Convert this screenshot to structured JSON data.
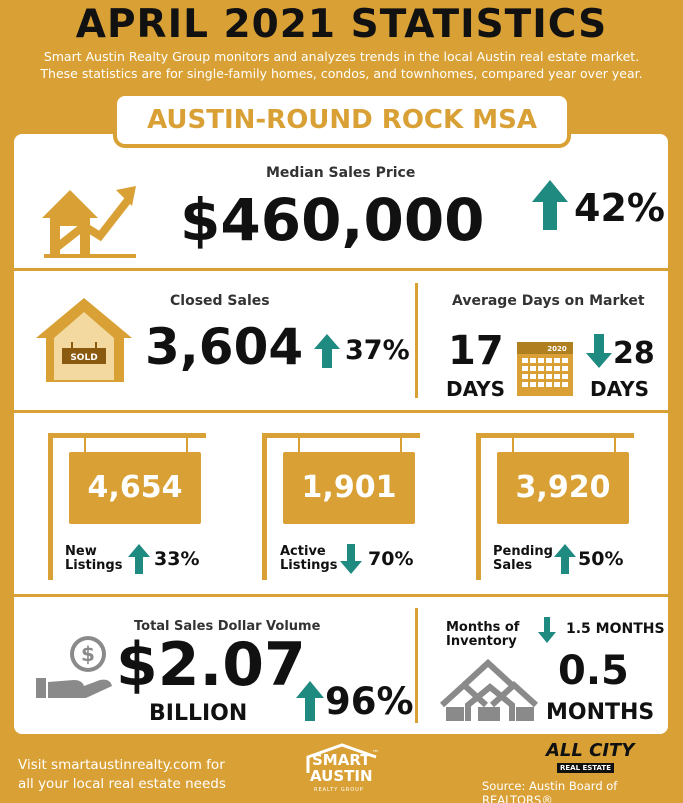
{
  "header": {
    "title": "APRIL 2021 STATISTICS",
    "intro_line1": "Smart Austin Realty Group monitors and analyzes trends in the local Austin real estate market.",
    "intro_line2": "These statistics are for single-family homes, condos, and townhomes, compared year over year."
  },
  "region": "AUSTIN-ROUND ROCK MSA",
  "median": {
    "label": "Median Sales Price",
    "value": "$460,000",
    "change": "42%",
    "direction": "up"
  },
  "closed": {
    "label": "Closed Sales",
    "value": "3,604",
    "change": "37%",
    "direction": "up",
    "sign_text": "SOLD"
  },
  "days": {
    "label": "Average Days on Market",
    "value": "17",
    "unit": "DAYS",
    "change": "28",
    "change_unit": "DAYS",
    "direction": "down",
    "calendar_year": "2020"
  },
  "listings": [
    {
      "value": "4,654",
      "label_line1": "New",
      "label_line2": "Listings",
      "change": "33%",
      "direction": "up"
    },
    {
      "value": "1,901",
      "label_line1": "Active",
      "label_line2": "Listings",
      "change": "70%",
      "direction": "down"
    },
    {
      "value": "3,920",
      "label_line1": "Pending",
      "label_line2": "Sales",
      "change": "50%",
      "direction": "up"
    }
  ],
  "volume": {
    "label": "Total Sales Dollar Volume",
    "value": "$2.07",
    "unit": "BILLION",
    "change": "96%",
    "direction": "up"
  },
  "inventory": {
    "label_line1": "Months of",
    "label_line2": "Inventory",
    "change": "1.5 MONTHS",
    "direction": "down",
    "value": "0.5",
    "unit": "MONTHS"
  },
  "footer": {
    "line1": "Visit smartaustinrealty.com for",
    "line2": "all your local real estate needs",
    "logo_line1": "SMART",
    "logo_line2": "AUSTIN",
    "logo_sub": "REALTY GROUP",
    "logo_tm": "™",
    "allcity_line1": "ALL CITY",
    "allcity_line2": "REAL ESTATE",
    "source": "Source: Austin Board of REALTORS®"
  },
  "colors": {
    "gold": "#d9a135",
    "teal": "#1f8a80",
    "dark": "#111111"
  }
}
